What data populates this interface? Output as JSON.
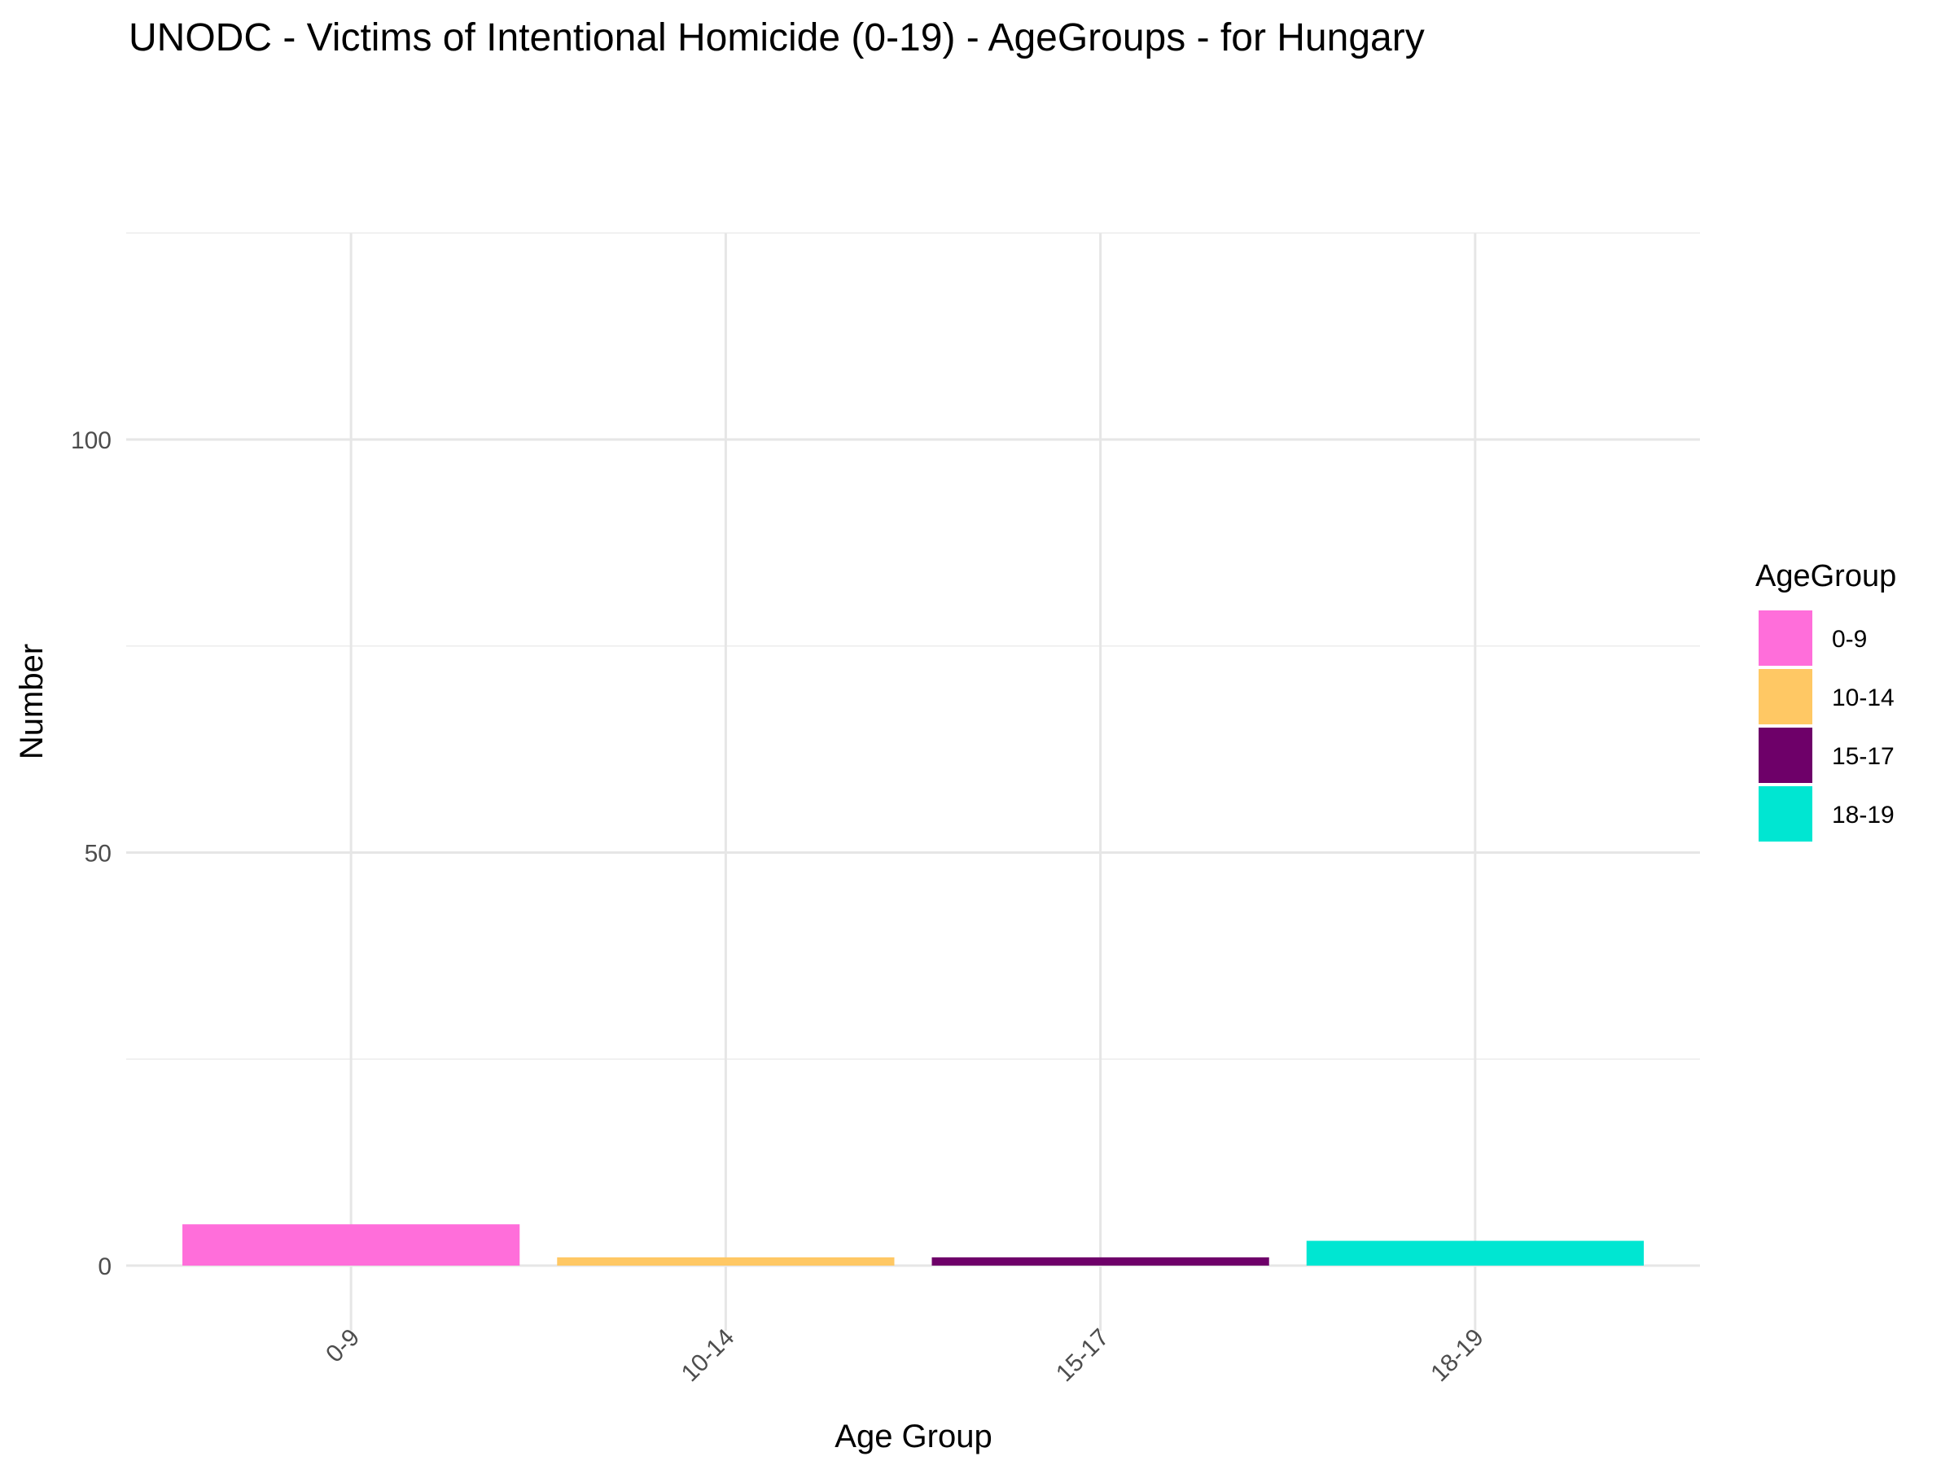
{
  "chart_data": {
    "type": "bar",
    "title": "UNODC - Victims of Intentional Homicide (0-19) - AgeGroups - for Hungary",
    "xlabel": "Age Group",
    "ylabel": "Number",
    "categories": [
      "0-9",
      "10-14",
      "15-17",
      "18-19"
    ],
    "values": [
      5,
      1,
      1,
      3
    ],
    "colors": [
      "#FF6EDA",
      "#FFC864",
      "#6E0069",
      "#00E6D2"
    ],
    "ylim": [
      0,
      125
    ],
    "y_ticks": [
      0,
      50,
      100
    ],
    "y_tick_labels": [
      "0",
      "50",
      "100"
    ],
    "legend": {
      "title": "AgeGroup",
      "position": "right",
      "items": [
        "0-9",
        "10-14",
        "15-17",
        "18-19"
      ]
    },
    "grid": true
  }
}
